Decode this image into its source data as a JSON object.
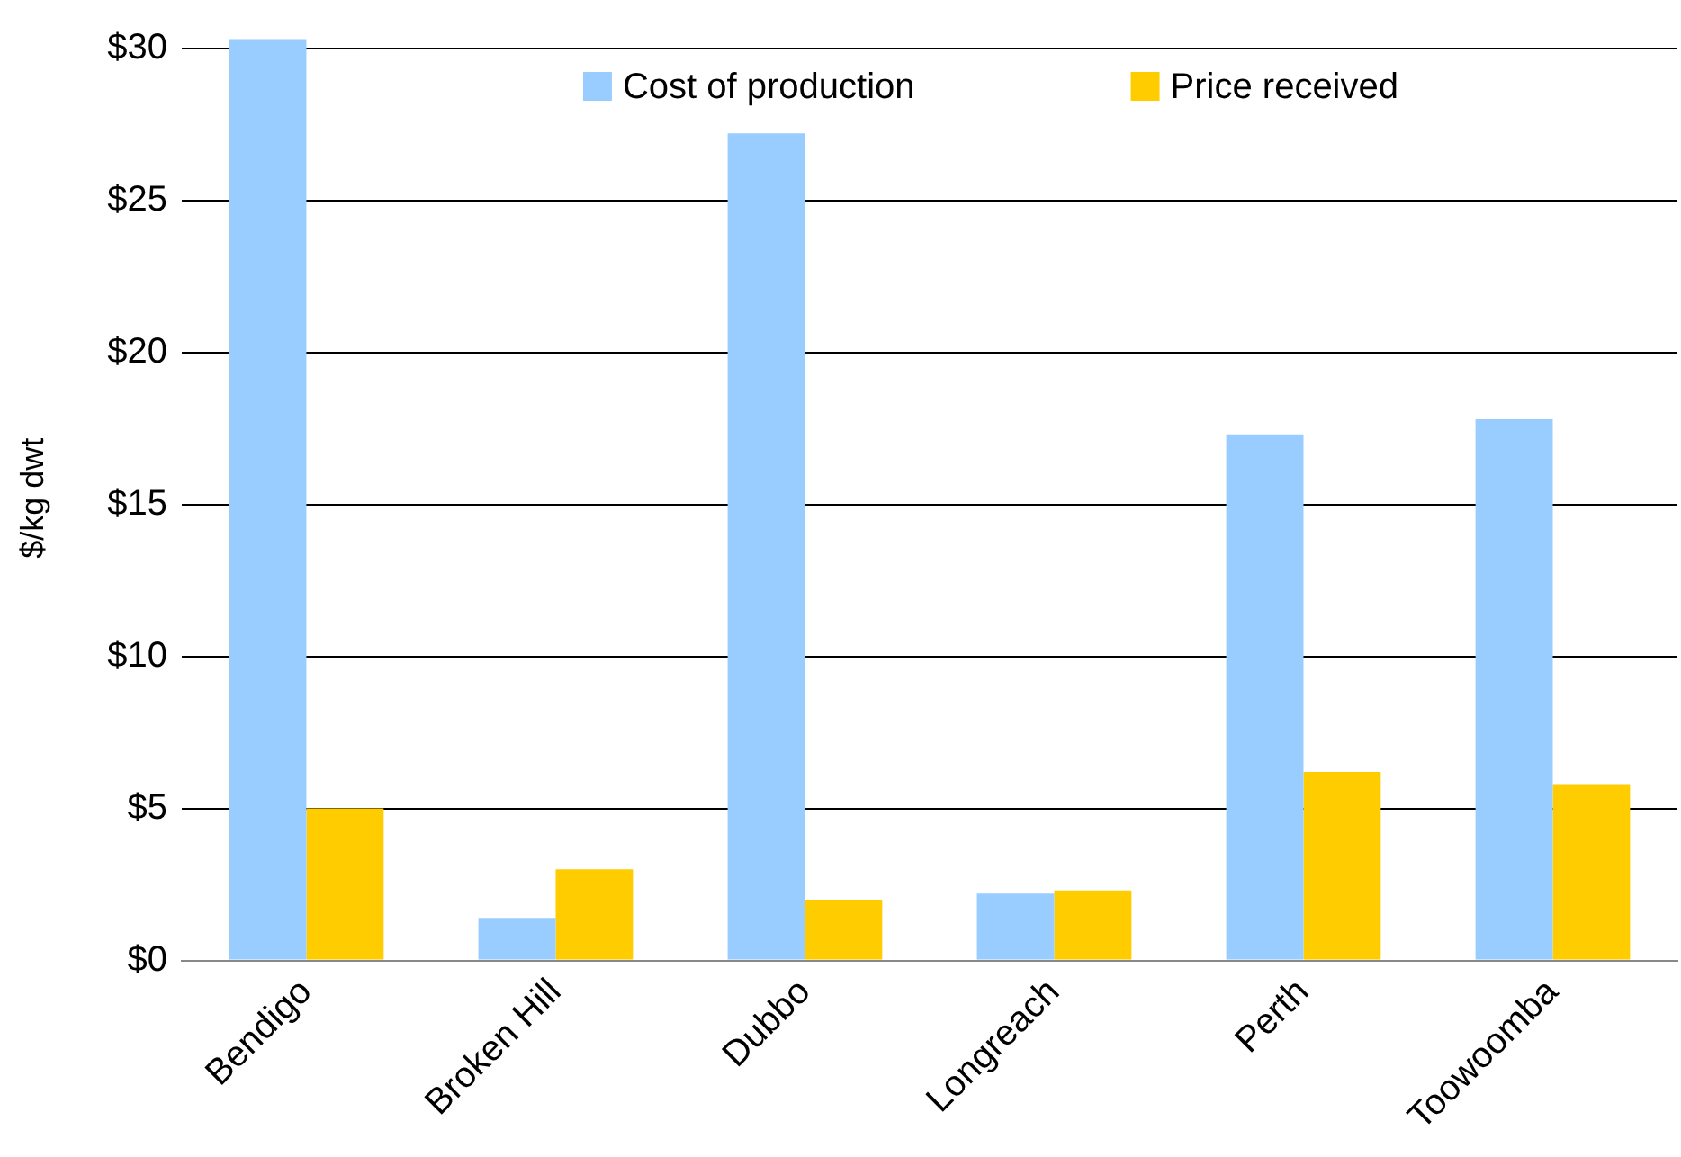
{
  "chart_data": {
    "type": "bar",
    "ylabel": "$/kg dwt",
    "categories": [
      "Bendigo",
      "Broken Hill",
      "Dubbo",
      "Longreach",
      "Perth",
      "Toowoomba"
    ],
    "series": [
      {
        "name": "Cost of production",
        "color": "#99ccff",
        "values": [
          30.3,
          1.4,
          27.2,
          2.2,
          17.3,
          17.8
        ]
      },
      {
        "name": "Price received",
        "color": "#ffcc00",
        "values": [
          5.0,
          3.0,
          2.0,
          2.3,
          6.2,
          5.8
        ]
      }
    ],
    "ylim": [
      0,
      30.4
    ],
    "yticks": [
      {
        "value": 0,
        "label": "$0"
      },
      {
        "value": 5,
        "label": "$5"
      },
      {
        "value": 10,
        "label": "$10"
      },
      {
        "value": 15,
        "label": "$15"
      },
      {
        "value": 20,
        "label": "$20"
      },
      {
        "value": 25,
        "label": "$25"
      },
      {
        "value": 30,
        "label": "$30"
      }
    ],
    "grid": "y",
    "legend": "top"
  }
}
